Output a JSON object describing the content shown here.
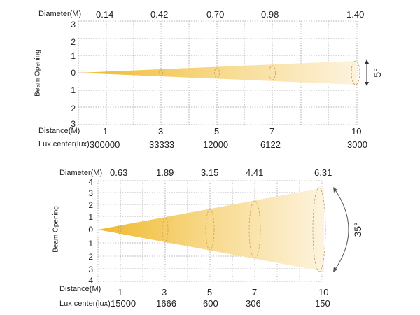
{
  "charts": [
    {
      "diameter_label": "Diameter(M)",
      "diameters": [
        "0.14",
        "0.42",
        "0.70",
        "0.98",
        "1.40"
      ],
      "y_ticks": [
        "3",
        "2",
        "1",
        "0",
        "1",
        "2",
        "3"
      ],
      "y_axis_label": "Beam Opening",
      "angle_label": "5°",
      "distance_label": "Distance(M)",
      "distances": [
        "1",
        "3",
        "5",
        "7",
        "10"
      ],
      "lux_label": "Lux center(lux)",
      "lux": [
        "300000",
        "33333",
        "12000",
        "6122",
        "3000"
      ]
    },
    {
      "diameter_label": "Diameter(M)",
      "diameters": [
        "0.63",
        "1.89",
        "3.15",
        "4.41",
        "6.31"
      ],
      "y_ticks": [
        "4",
        "3",
        "2",
        "1",
        "0",
        "1",
        "2",
        "3",
        "4"
      ],
      "y_axis_label": "Beam Opening",
      "angle_label": "35°",
      "distance_label": "Distance(M)",
      "distances": [
        "1",
        "3",
        "5",
        "7",
        "10"
      ],
      "lux_label": "Lux center(lux)",
      "lux": [
        "15000",
        "1666",
        "600",
        "306",
        "150"
      ]
    }
  ],
  "colors": {
    "beam_core": "#f2bf3a",
    "beam_edge": "#fdf3dc",
    "grid": "#9a9a9a"
  }
}
